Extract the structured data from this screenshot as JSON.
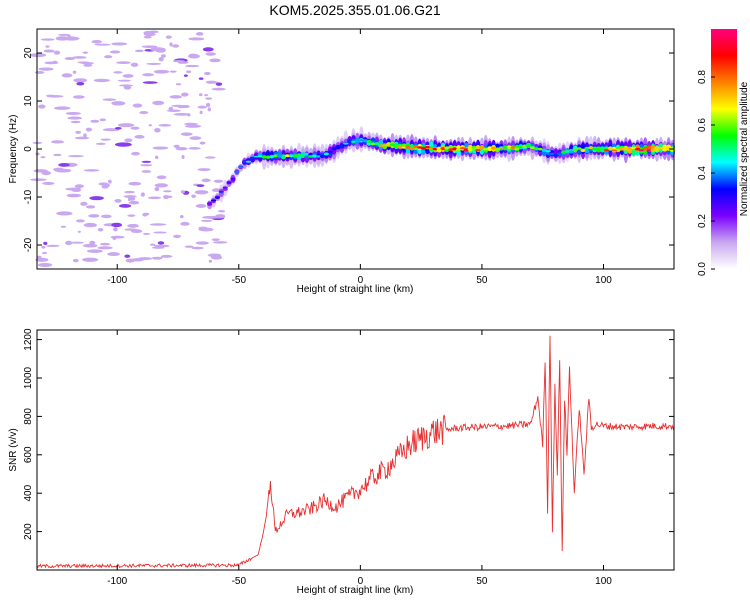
{
  "title": "KOM5.2025.355.01.06.G21",
  "chart_data": [
    {
      "type": "heatmap",
      "xlabel": "Height of straight line (km)",
      "ylabel": "Frequency (Hz)",
      "xlim": [
        -133,
        129
      ],
      "ylim": [
        -25,
        25
      ],
      "xticks": [
        "-100",
        "-50",
        "0",
        "50",
        "100"
      ],
      "xtick_values": [
        -100,
        -50,
        0,
        50,
        100
      ],
      "yticks": [
        "20",
        "10",
        "0",
        "-10",
        "-20"
      ],
      "ytick_values": [
        20,
        10,
        0,
        -10,
        -20
      ],
      "colorbar": {
        "label": "Normalized spectral amplitude",
        "range": [
          0,
          1
        ],
        "ticks": [
          "0.0",
          "0.2",
          "0.4",
          "0.6",
          "0.8"
        ],
        "tick_values": [
          0,
          0.2,
          0.4,
          0.6,
          0.8
        ],
        "colors": [
          "#ffffff",
          "#c9a8f0",
          "#7b00ff",
          "#0000ff",
          "#00ffff",
          "#00ff00",
          "#ffff00",
          "#ff8000",
          "#ff0000",
          "#ff0080"
        ]
      },
      "ridge": [
        {
          "x": -62,
          "y": -11.5,
          "amp": 0.25
        },
        {
          "x": -55,
          "y": -8,
          "amp": 0.3
        },
        {
          "x": -48,
          "y": -3,
          "amp": 0.35
        },
        {
          "x": -42,
          "y": -1.5,
          "amp": 0.45
        },
        {
          "x": -30,
          "y": -1.5,
          "amp": 0.55
        },
        {
          "x": -15,
          "y": -1.5,
          "amp": 0.4
        },
        {
          "x": -5,
          "y": 1.5,
          "amp": 0.35
        },
        {
          "x": 0,
          "y": 1.8,
          "amp": 0.5
        },
        {
          "x": 10,
          "y": 0.8,
          "amp": 0.7
        },
        {
          "x": 25,
          "y": 0.2,
          "amp": 0.75
        },
        {
          "x": 40,
          "y": 0,
          "amp": 0.8
        },
        {
          "x": 55,
          "y": 0,
          "amp": 0.75
        },
        {
          "x": 70,
          "y": 0.5,
          "amp": 0.55
        },
        {
          "x": 80,
          "y": -1.2,
          "amp": 0.4
        },
        {
          "x": 90,
          "y": 0,
          "amp": 0.55
        },
        {
          "x": 105,
          "y": 0,
          "amp": 0.75
        },
        {
          "x": 118,
          "y": 0,
          "amp": 0.9
        },
        {
          "x": 129,
          "y": 0,
          "amp": 0.7
        }
      ]
    },
    {
      "type": "line",
      "xlabel": "Height of straight line (km)",
      "ylabel": "SNR (v/v)",
      "xlim": [
        -133,
        129
      ],
      "ylim": [
        0,
        1250
      ],
      "xticks": [
        "-100",
        "-50",
        "0",
        "50",
        "100"
      ],
      "xtick_values": [
        -100,
        -50,
        0,
        50,
        100
      ],
      "yticks": [
        "200",
        "400",
        "600",
        "800",
        "1000",
        "1200"
      ],
      "ytick_values": [
        200,
        400,
        600,
        800,
        1000,
        1200
      ],
      "series": [
        {
          "color": "#e83030",
          "x": [
            -133,
            -50,
            -42,
            -39,
            -37,
            -35,
            -30,
            -25,
            -20,
            -15,
            -10,
            -5,
            0,
            5,
            10,
            15,
            20,
            30,
            40,
            50,
            60,
            70,
            73,
            75,
            76,
            77,
            78,
            79,
            80,
            81,
            82,
            83,
            84,
            85,
            86,
            88,
            90,
            92,
            93,
            94,
            95,
            97,
            100,
            110,
            120,
            129
          ],
          "y": [
            20,
            25,
            80,
            250,
            470,
            200,
            290,
            300,
            320,
            360,
            330,
            380,
            420,
            480,
            520,
            580,
            650,
            720,
            740,
            745,
            750,
            760,
            900,
            650,
            1100,
            300,
            1250,
            200,
            950,
            500,
            1100,
            100,
            900,
            600,
            1050,
            400,
            850,
            500,
            700,
            900,
            740,
            760,
            750,
            745,
            750,
            750
          ]
        }
      ]
    }
  ]
}
